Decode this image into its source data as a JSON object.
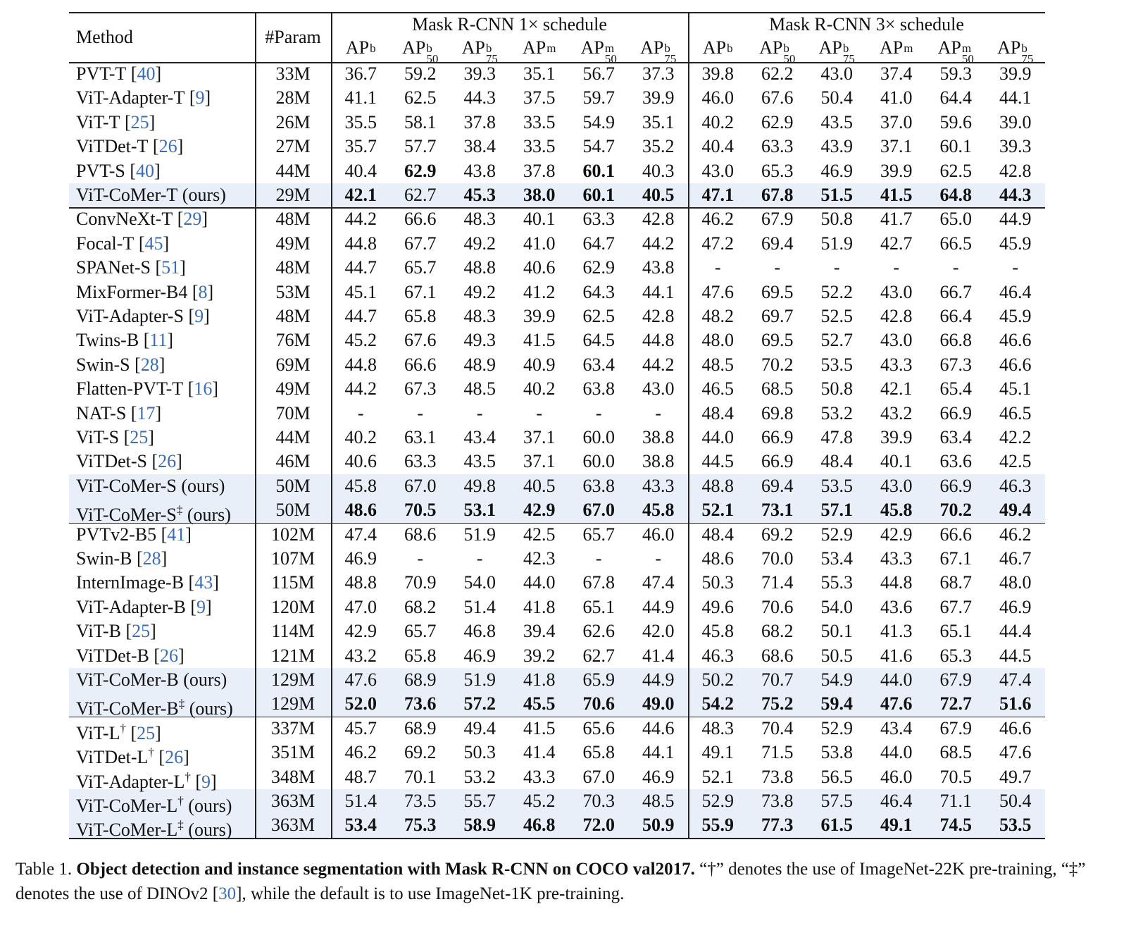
{
  "table": {
    "header": {
      "method": "Method",
      "param": "#Param",
      "groups": [
        {
          "title": "Mask R-CNN 1× schedule",
          "metrics": [
            {
              "base": "AP",
              "sup": "b"
            },
            {
              "base": "AP",
              "sup": "b",
              "sub": "50"
            },
            {
              "base": "AP",
              "sup": "b",
              "sub": "75"
            },
            {
              "base": "AP",
              "sup": "m"
            },
            {
              "base": "AP",
              "sup": "m",
              "sub": "50"
            },
            {
              "base": "AP",
              "sup": "b",
              "sub": "75"
            }
          ]
        },
        {
          "title": "Mask R-CNN 3× schedule",
          "metrics": [
            {
              "base": "AP",
              "sup": "b"
            },
            {
              "base": "AP",
              "sup": "b",
              "sub": "50"
            },
            {
              "base": "AP",
              "sup": "b",
              "sub": "75"
            },
            {
              "base": "AP",
              "sup": "m"
            },
            {
              "base": "AP",
              "sup": "m",
              "sub": "50"
            },
            {
              "base": "AP",
              "sup": "b",
              "sub": "75"
            }
          ]
        }
      ]
    },
    "sections": [
      [
        {
          "name": "PVT-T",
          "cite": [
            "[",
            "40",
            "]"
          ],
          "param": "33M",
          "values": [
            "36.7",
            "59.2",
            "39.3",
            "35.1",
            "56.7",
            "37.3",
            "39.8",
            "62.2",
            "43.0",
            "37.4",
            "59.3",
            "39.9"
          ]
        },
        {
          "name": "ViT-Adapter-T",
          "cite": [
            "[",
            "9",
            "]"
          ],
          "param": "28M",
          "values": [
            "41.1",
            "62.5",
            "44.3",
            "37.5",
            "59.7",
            "39.9",
            "46.0",
            "67.6",
            "50.4",
            "41.0",
            "64.4",
            "44.1"
          ]
        },
        {
          "name": "ViT-T",
          "cite": [
            "[",
            "25",
            "]"
          ],
          "param": "26M",
          "values": [
            "35.5",
            "58.1",
            "37.8",
            "33.5",
            "54.9",
            "35.1",
            "40.2",
            "62.9",
            "43.5",
            "37.0",
            "59.6",
            "39.0"
          ]
        },
        {
          "name": "ViTDet-T",
          "cite": [
            "[",
            "26",
            "]"
          ],
          "param": "27M",
          "values": [
            "35.7",
            "57.7",
            "38.4",
            "33.5",
            "54.7",
            "35.2",
            "40.4",
            "63.3",
            "43.9",
            "37.1",
            "60.1",
            "39.3"
          ]
        },
        {
          "name": "PVT-S",
          "cite": [
            "[",
            "40",
            "]"
          ],
          "param": "44M",
          "values": [
            "40.4",
            "62.9",
            "43.8",
            "37.8",
            "60.1",
            "40.3",
            "43.0",
            "65.3",
            "46.9",
            "39.9",
            "62.5",
            "42.8"
          ],
          "bold": [
            false,
            true,
            false,
            false,
            true,
            false,
            false,
            false,
            false,
            false,
            false,
            false
          ]
        },
        {
          "name": "ViT-CoMer-T",
          "suffix": "(ours)",
          "highlight": true,
          "param": "29M",
          "values": [
            "42.1",
            "62.7",
            "45.3",
            "38.0",
            "60.1",
            "40.5",
            "47.1",
            "67.8",
            "51.5",
            "41.5",
            "64.8",
            "44.3"
          ],
          "bold": [
            true,
            false,
            true,
            true,
            true,
            true,
            true,
            true,
            true,
            true,
            true,
            true
          ]
        }
      ],
      [
        {
          "name": "ConvNeXt-T",
          "cite": [
            "[",
            "29",
            "]"
          ],
          "param": "48M",
          "values": [
            "44.2",
            "66.6",
            "48.3",
            "40.1",
            "63.3",
            "42.8",
            "46.2",
            "67.9",
            "50.8",
            "41.7",
            "65.0",
            "44.9"
          ]
        },
        {
          "name": "Focal-T",
          "cite": [
            "[",
            "45",
            "]"
          ],
          "param": "49M",
          "values": [
            "44.8",
            "67.7",
            "49.2",
            "41.0",
            "64.7",
            "44.2",
            "47.2",
            "69.4",
            "51.9",
            "42.7",
            "66.5",
            "45.9"
          ]
        },
        {
          "name": "SPANet-S",
          "cite": [
            "[",
            "51",
            "]"
          ],
          "param": "48M",
          "values": [
            "44.7",
            "65.7",
            "48.8",
            "40.6",
            "62.9",
            "43.8",
            "-",
            "-",
            "-",
            "-",
            "-",
            "-"
          ]
        },
        {
          "name": "MixFormer-B4",
          "cite": [
            "[",
            "8",
            "]"
          ],
          "param": "53M",
          "values": [
            "45.1",
            "67.1",
            "49.2",
            "41.2",
            "64.3",
            "44.1",
            "47.6",
            "69.5",
            "52.2",
            "43.0",
            "66.7",
            "46.4"
          ]
        },
        {
          "name": "ViT-Adapter-S",
          "cite": [
            "[",
            "9",
            "]"
          ],
          "param": "48M",
          "values": [
            "44.7",
            "65.8",
            "48.3",
            "39.9",
            "62.5",
            "42.8",
            "48.2",
            "69.7",
            "52.5",
            "42.8",
            "66.4",
            "45.9"
          ]
        },
        {
          "name": "Twins-B",
          "cite": [
            "[",
            "11",
            "]"
          ],
          "param": "76M",
          "values": [
            "45.2",
            "67.6",
            "49.3",
            "41.5",
            "64.5",
            "44.8",
            "48.0",
            "69.5",
            "52.7",
            "43.0",
            "66.8",
            "46.6"
          ]
        },
        {
          "name": "Swin-S",
          "cite": [
            "[",
            "28",
            "]"
          ],
          "param": "69M",
          "values": [
            "44.8",
            "66.6",
            "48.9",
            "40.9",
            "63.4",
            "44.2",
            "48.5",
            "70.2",
            "53.5",
            "43.3",
            "67.3",
            "46.6"
          ]
        },
        {
          "name": "Flatten-PVT-T",
          "cite": [
            "[",
            "16",
            "]"
          ],
          "param": "49M",
          "values": [
            "44.2",
            "67.3",
            "48.5",
            "40.2",
            "63.8",
            "43.0",
            "46.5",
            "68.5",
            "50.8",
            "42.1",
            "65.4",
            "45.1"
          ]
        },
        {
          "name": "NAT-S",
          "cite": [
            "[",
            "17",
            "]"
          ],
          "param": "70M",
          "values": [
            "-",
            "-",
            "-",
            "-",
            "-",
            "-",
            "48.4",
            "69.8",
            "53.2",
            "43.2",
            "66.9",
            "46.5"
          ]
        },
        {
          "name": "ViT-S",
          "cite": [
            "[",
            "25",
            "]"
          ],
          "param": "44M",
          "values": [
            "40.2",
            "63.1",
            "43.4",
            "37.1",
            "60.0",
            "38.8",
            "44.0",
            "66.9",
            "47.8",
            "39.9",
            "63.4",
            "42.2"
          ]
        },
        {
          "name": "ViTDet-S",
          "cite": [
            "[",
            "26",
            "]"
          ],
          "param": "46M",
          "values": [
            "40.6",
            "63.3",
            "43.5",
            "37.1",
            "60.0",
            "38.8",
            "44.5",
            "66.9",
            "48.4",
            "40.1",
            "63.6",
            "42.5"
          ]
        },
        {
          "name": "ViT-CoMer-S",
          "suffix": "(ours)",
          "highlight": true,
          "param": "50M",
          "values": [
            "45.8",
            "67.0",
            "49.8",
            "40.5",
            "63.8",
            "43.3",
            "48.8",
            "69.4",
            "53.5",
            "43.0",
            "66.9",
            "46.3"
          ]
        },
        {
          "name": "ViT-CoMer-S",
          "sup": "‡",
          "suffix": "(ours)",
          "highlight": true,
          "param": "50M",
          "values": [
            "48.6",
            "70.5",
            "53.1",
            "42.9",
            "67.0",
            "45.8",
            "52.1",
            "73.1",
            "57.1",
            "45.8",
            "70.2",
            "49.4"
          ],
          "bold": [
            true,
            true,
            true,
            true,
            true,
            true,
            true,
            true,
            true,
            true,
            true,
            true
          ]
        }
      ],
      [
        {
          "name": "PVTv2-B5",
          "cite": [
            "[",
            "41",
            "]"
          ],
          "param": "102M",
          "values": [
            "47.4",
            "68.6",
            "51.9",
            "42.5",
            "65.7",
            "46.0",
            "48.4",
            "69.2",
            "52.9",
            "42.9",
            "66.6",
            "46.2"
          ]
        },
        {
          "name": "Swin-B",
          "cite": [
            "[",
            "28",
            "]"
          ],
          "param": "107M",
          "values": [
            "46.9",
            "-",
            "-",
            "42.3",
            "-",
            "-",
            "48.6",
            "70.0",
            "53.4",
            "43.3",
            "67.1",
            "46.7"
          ]
        },
        {
          "name": "InternImage-B",
          "cite": [
            "[",
            "43",
            "]"
          ],
          "param": "115M",
          "values": [
            "48.8",
            "70.9",
            "54.0",
            "44.0",
            "67.8",
            "47.4",
            "50.3",
            "71.4",
            "55.3",
            "44.8",
            "68.7",
            "48.0"
          ]
        },
        {
          "name": "ViT-Adapter-B",
          "cite": [
            "[",
            "9",
            "]"
          ],
          "param": "120M",
          "values": [
            "47.0",
            "68.2",
            "51.4",
            "41.8",
            "65.1",
            "44.9",
            "49.6",
            "70.6",
            "54.0",
            "43.6",
            "67.7",
            "46.9"
          ]
        },
        {
          "name": "ViT-B",
          "cite": [
            "[",
            "25",
            "]"
          ],
          "param": "114M",
          "values": [
            "42.9",
            "65.7",
            "46.8",
            "39.4",
            "62.6",
            "42.0",
            "45.8",
            "68.2",
            "50.1",
            "41.3",
            "65.1",
            "44.4"
          ]
        },
        {
          "name": "ViTDet-B",
          "cite": [
            "[",
            "26",
            "]"
          ],
          "param": "121M",
          "values": [
            "43.2",
            "65.8",
            "46.9",
            "39.2",
            "62.7",
            "41.4",
            "46.3",
            "68.6",
            "50.5",
            "41.6",
            "65.3",
            "44.5"
          ]
        },
        {
          "name": "ViT-CoMer-B",
          "suffix": "(ours)",
          "highlight": true,
          "param": "129M",
          "values": [
            "47.6",
            "68.9",
            "51.9",
            "41.8",
            "65.9",
            "44.9",
            "50.2",
            "70.7",
            "54.9",
            "44.0",
            "67.9",
            "47.4"
          ]
        },
        {
          "name": "ViT-CoMer-B",
          "sup": "‡",
          "suffix": "(ours)",
          "highlight": true,
          "param": "129M",
          "values": [
            "52.0",
            "73.6",
            "57.2",
            "45.5",
            "70.6",
            "49.0",
            "54.2",
            "75.2",
            "59.4",
            "47.6",
            "72.7",
            "51.6"
          ],
          "bold": [
            true,
            true,
            true,
            true,
            true,
            true,
            true,
            true,
            true,
            true,
            true,
            true
          ]
        }
      ],
      [
        {
          "name": "ViT-L",
          "sup": "†",
          "cite": [
            "[",
            "25",
            "]"
          ],
          "param": "337M",
          "values": [
            "45.7",
            "68.9",
            "49.4",
            "41.5",
            "65.6",
            "44.6",
            "48.3",
            "70.4",
            "52.9",
            "43.4",
            "67.9",
            "46.6"
          ]
        },
        {
          "name": "ViTDet-L",
          "sup": "†",
          "cite": [
            "[",
            "26",
            "]"
          ],
          "param": "351M",
          "values": [
            "46.2",
            "69.2",
            "50.3",
            "41.4",
            "65.8",
            "44.1",
            "49.1",
            "71.5",
            "53.8",
            "44.0",
            "68.5",
            "47.6"
          ]
        },
        {
          "name": "ViT-Adapter-L",
          "sup": "†",
          "cite": [
            "[",
            "9",
            "]"
          ],
          "param": "348M",
          "values": [
            "48.7",
            "70.1",
            "53.2",
            "43.3",
            "67.0",
            "46.9",
            "52.1",
            "73.8",
            "56.5",
            "46.0",
            "70.5",
            "49.7"
          ]
        },
        {
          "name": "ViT-CoMer-L",
          "sup": "†",
          "suffix": "(ours)",
          "highlight": true,
          "param": "363M",
          "values": [
            "51.4",
            "73.5",
            "55.7",
            "45.2",
            "70.3",
            "48.5",
            "52.9",
            "73.8",
            "57.5",
            "46.4",
            "71.1",
            "50.4"
          ]
        },
        {
          "name": "ViT-CoMer-L",
          "sup": "‡",
          "suffix": "(ours)",
          "highlight": true,
          "param": "363M",
          "values": [
            "53.4",
            "75.3",
            "58.9",
            "46.8",
            "72.0",
            "50.9",
            "55.9",
            "77.3",
            "61.5",
            "49.1",
            "74.5",
            "53.5"
          ],
          "bold": [
            true,
            true,
            true,
            true,
            true,
            true,
            true,
            true,
            true,
            true,
            true,
            true
          ]
        }
      ]
    ]
  },
  "caption": {
    "label": "Table 1.",
    "bold": "Object detection and instance segmentation with Mask R-CNN on COCO val2017.",
    "text": "“†” denotes the use of ImageNet-22K pre-training, “‡” denotes the use of DINOv2 [",
    "cite": "30",
    "text_end": "], while the default is to use ImageNet-1K pre-training."
  }
}
